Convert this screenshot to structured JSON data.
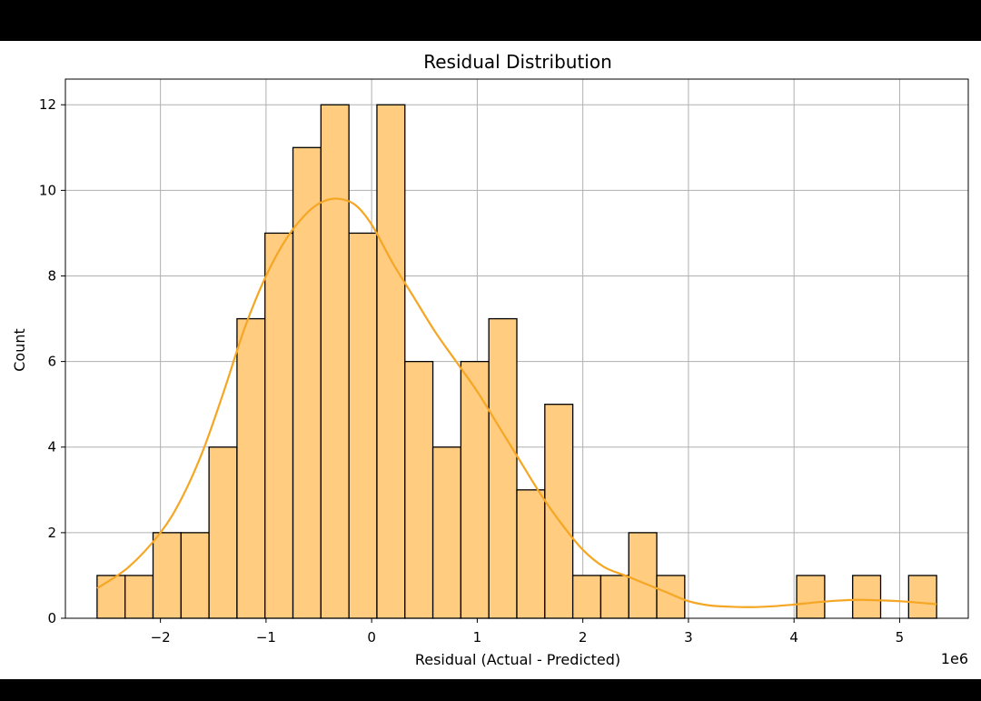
{
  "chart_data": {
    "type": "bar",
    "title": "Residual Distribution",
    "xlabel": "Residual (Actual - Predicted)",
    "ylabel": "Count",
    "x_offset_text": "1e6",
    "x_scale": 1000000,
    "xlim": [
      -2.9,
      5.65
    ],
    "ylim": [
      0,
      12.6
    ],
    "xticks": [
      -2,
      -1,
      0,
      1,
      2,
      3,
      4,
      5
    ],
    "xtick_labels": [
      "−2",
      "−1",
      "0",
      "1",
      "2",
      "3",
      "4",
      "5"
    ],
    "yticks": [
      0,
      2,
      4,
      6,
      8,
      10,
      12
    ],
    "ytick_labels": [
      "0",
      "2",
      "4",
      "6",
      "8",
      "10",
      "12"
    ],
    "grid": true,
    "bin_start": -2.6,
    "bin_width": 0.265,
    "counts": [
      1,
      1,
      2,
      2,
      4,
      7,
      9,
      11,
      12,
      9,
      12,
      6,
      4,
      6,
      7,
      3,
      5,
      1,
      1,
      2,
      1,
      0,
      0,
      0,
      0,
      1,
      0,
      1,
      0,
      1
    ],
    "bar_color": "#ffcc80",
    "bar_edge_color": "#000000",
    "kde_color": "#f5a623",
    "kde": {
      "x": [
        -2.6,
        -2.3,
        -2.0,
        -1.8,
        -1.6,
        -1.4,
        -1.2,
        -1.0,
        -0.8,
        -0.6,
        -0.45,
        -0.3,
        -0.15,
        0.0,
        0.2,
        0.4,
        0.6,
        0.8,
        1.0,
        1.2,
        1.4,
        1.6,
        1.8,
        2.0,
        2.2,
        2.4,
        2.6,
        2.8,
        3.0,
        3.2,
        3.4,
        3.6,
        3.8,
        4.0,
        4.2,
        4.4,
        4.6,
        4.8,
        5.0,
        5.2,
        5.35
      ],
      "y": [
        0.7,
        1.2,
        2.0,
        2.8,
        3.9,
        5.3,
        6.8,
        8.0,
        8.9,
        9.5,
        9.75,
        9.8,
        9.65,
        9.2,
        8.3,
        7.5,
        6.7,
        6.0,
        5.3,
        4.5,
        3.7,
        2.9,
        2.2,
        1.6,
        1.2,
        1.0,
        0.8,
        0.6,
        0.4,
        0.3,
        0.27,
        0.26,
        0.28,
        0.32,
        0.37,
        0.41,
        0.43,
        0.42,
        0.4,
        0.36,
        0.33
      ]
    }
  }
}
